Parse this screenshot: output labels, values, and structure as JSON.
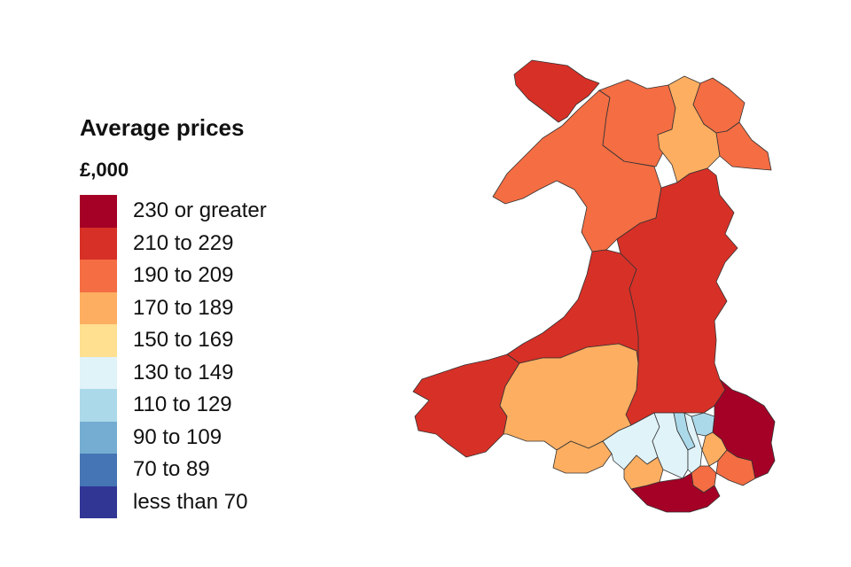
{
  "legend": {
    "title": "Average prices",
    "unit": "£,000",
    "items": [
      {
        "label": "230 or greater",
        "color": "#a50026"
      },
      {
        "label": "210 to 229",
        "color": "#d73027"
      },
      {
        "label": "190 to 209",
        "color": "#f46d43"
      },
      {
        "label": "170 to 189",
        "color": "#fdae61"
      },
      {
        "label": "150 to 169",
        "color": "#fee090"
      },
      {
        "label": "130 to 149",
        "color": "#e0f3f8"
      },
      {
        "label": "110 to 129",
        "color": "#abd9e9"
      },
      {
        "label": "90 to 109",
        "color": "#74add1"
      },
      {
        "label": "70 to 89",
        "color": "#4575b4"
      },
      {
        "label": "less than 70",
        "color": "#313695"
      }
    ]
  },
  "regions": [
    {
      "id": "anglesey",
      "band": 1
    },
    {
      "id": "gwynedd",
      "band": 2
    },
    {
      "id": "conwy",
      "band": 2
    },
    {
      "id": "denbighshire",
      "band": 3
    },
    {
      "id": "flintshire",
      "band": 2
    },
    {
      "id": "wrexham",
      "band": 2
    },
    {
      "id": "powys",
      "band": 1
    },
    {
      "id": "ceredigion",
      "band": 1
    },
    {
      "id": "pembrokeshire",
      "band": 1
    },
    {
      "id": "carmarthenshire",
      "band": 3
    },
    {
      "id": "swansea",
      "band": 3
    },
    {
      "id": "neath-port-talbot",
      "band": 5
    },
    {
      "id": "bridgend",
      "band": 3
    },
    {
      "id": "rhondda-cynon-taf",
      "band": 5
    },
    {
      "id": "merthyr-tydfil",
      "band": 6
    },
    {
      "id": "caerphilly",
      "band": 5
    },
    {
      "id": "blaenau-gwent",
      "band": 6
    },
    {
      "id": "torfaen",
      "band": 3
    },
    {
      "id": "newport",
      "band": 2
    },
    {
      "id": "monmouthshire",
      "band": 0
    },
    {
      "id": "cardiff",
      "band": 2
    },
    {
      "id": "vale-of-glamorgan",
      "band": 0
    }
  ]
}
